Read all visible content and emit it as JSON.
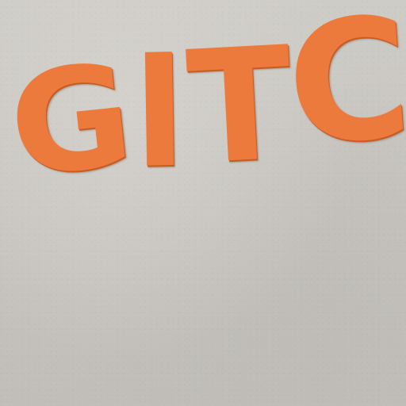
{
  "photo": {
    "sign_letters": [
      "G",
      "I",
      "T",
      "C"
    ],
    "colors": {
      "letters": "#ec7a3d",
      "letter_shadow": "#c85a22",
      "wall": "#c9c6c1"
    }
  }
}
